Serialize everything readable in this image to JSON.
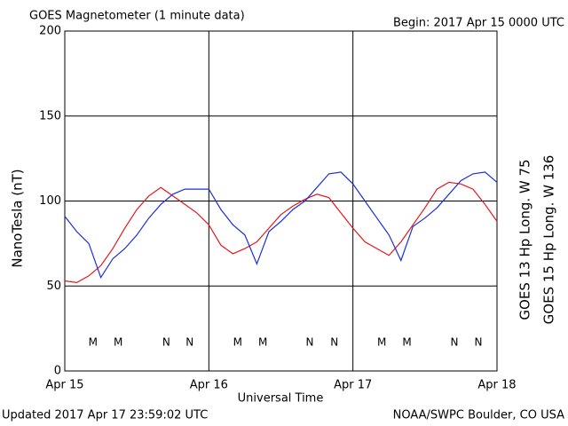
{
  "chart_data": {
    "type": "line",
    "title": "GOES Magnetometer (1 minute data)",
    "subtitle": "Begin:  2017 Apr 15 0000 UTC",
    "y_label": "NanoTesla (nT)",
    "x_label": "Universal Time",
    "footer_left": "Updated 2017 Apr 17 23:59:02 UTC",
    "footer_right": "NOAA/SWPC Boulder, CO USA",
    "xlim": [
      0,
      72
    ],
    "xticks": [
      {
        "value": 0,
        "label": "Apr 15"
      },
      {
        "value": 24,
        "label": "Apr 16"
      },
      {
        "value": 48,
        "label": "Apr 17"
      },
      {
        "value": 72,
        "label": "Apr 18"
      }
    ],
    "ylim": [
      0,
      200
    ],
    "yticks": [
      0,
      50,
      100,
      150,
      200
    ],
    "grid": true,
    "x": [
      0,
      2,
      4,
      6,
      8,
      10,
      12,
      14,
      16,
      18,
      20,
      22,
      24,
      26,
      28,
      30,
      32,
      34,
      36,
      38,
      40,
      42,
      44,
      46,
      48,
      50,
      52,
      54,
      56,
      58,
      60,
      62,
      64,
      66,
      68,
      70,
      72
    ],
    "series": [
      {
        "name": "GOES 13 Hp  Long. W 75",
        "color": "#e8161b",
        "values": [
          53,
          52,
          56,
          62,
          72,
          84,
          95,
          103,
          108,
          103,
          98,
          93,
          86,
          74,
          69,
          72,
          76,
          84,
          92,
          97,
          101,
          104,
          102,
          93,
          84,
          76,
          72,
          68,
          76,
          86,
          96,
          107,
          111,
          110,
          107,
          98,
          88
        ]
      },
      {
        "name": "GOES 15 Hp  Long. W 136",
        "color": "#1a2fd6",
        "values": [
          91,
          82,
          75,
          55,
          66,
          72,
          80,
          90,
          98,
          104,
          107,
          107,
          107,
          95,
          86,
          80,
          63,
          82,
          88,
          95,
          100,
          108,
          116,
          117,
          110,
          100,
          90,
          80,
          65,
          85,
          90,
          96,
          104,
          112,
          116,
          117,
          111
        ]
      }
    ],
    "markers": [
      {
        "text": "M",
        "x": 4.7,
        "series": 0
      },
      {
        "text": "M",
        "x": 8.9,
        "series": 1
      },
      {
        "text": "N",
        "x": 16.9,
        "series": 0
      },
      {
        "text": "N",
        "x": 20.8,
        "series": 1
      },
      {
        "text": "M",
        "x": 28.8,
        "series": 0
      },
      {
        "text": "M",
        "x": 33,
        "series": 1
      },
      {
        "text": "N",
        "x": 40.8,
        "series": 0
      },
      {
        "text": "N",
        "x": 44.9,
        "series": 1
      },
      {
        "text": "M",
        "x": 52.8,
        "series": 0
      },
      {
        "text": "M",
        "x": 57,
        "series": 1
      },
      {
        "text": "N",
        "x": 64.9,
        "series": 0
      },
      {
        "text": "N",
        "x": 68.9,
        "series": 1
      }
    ]
  }
}
